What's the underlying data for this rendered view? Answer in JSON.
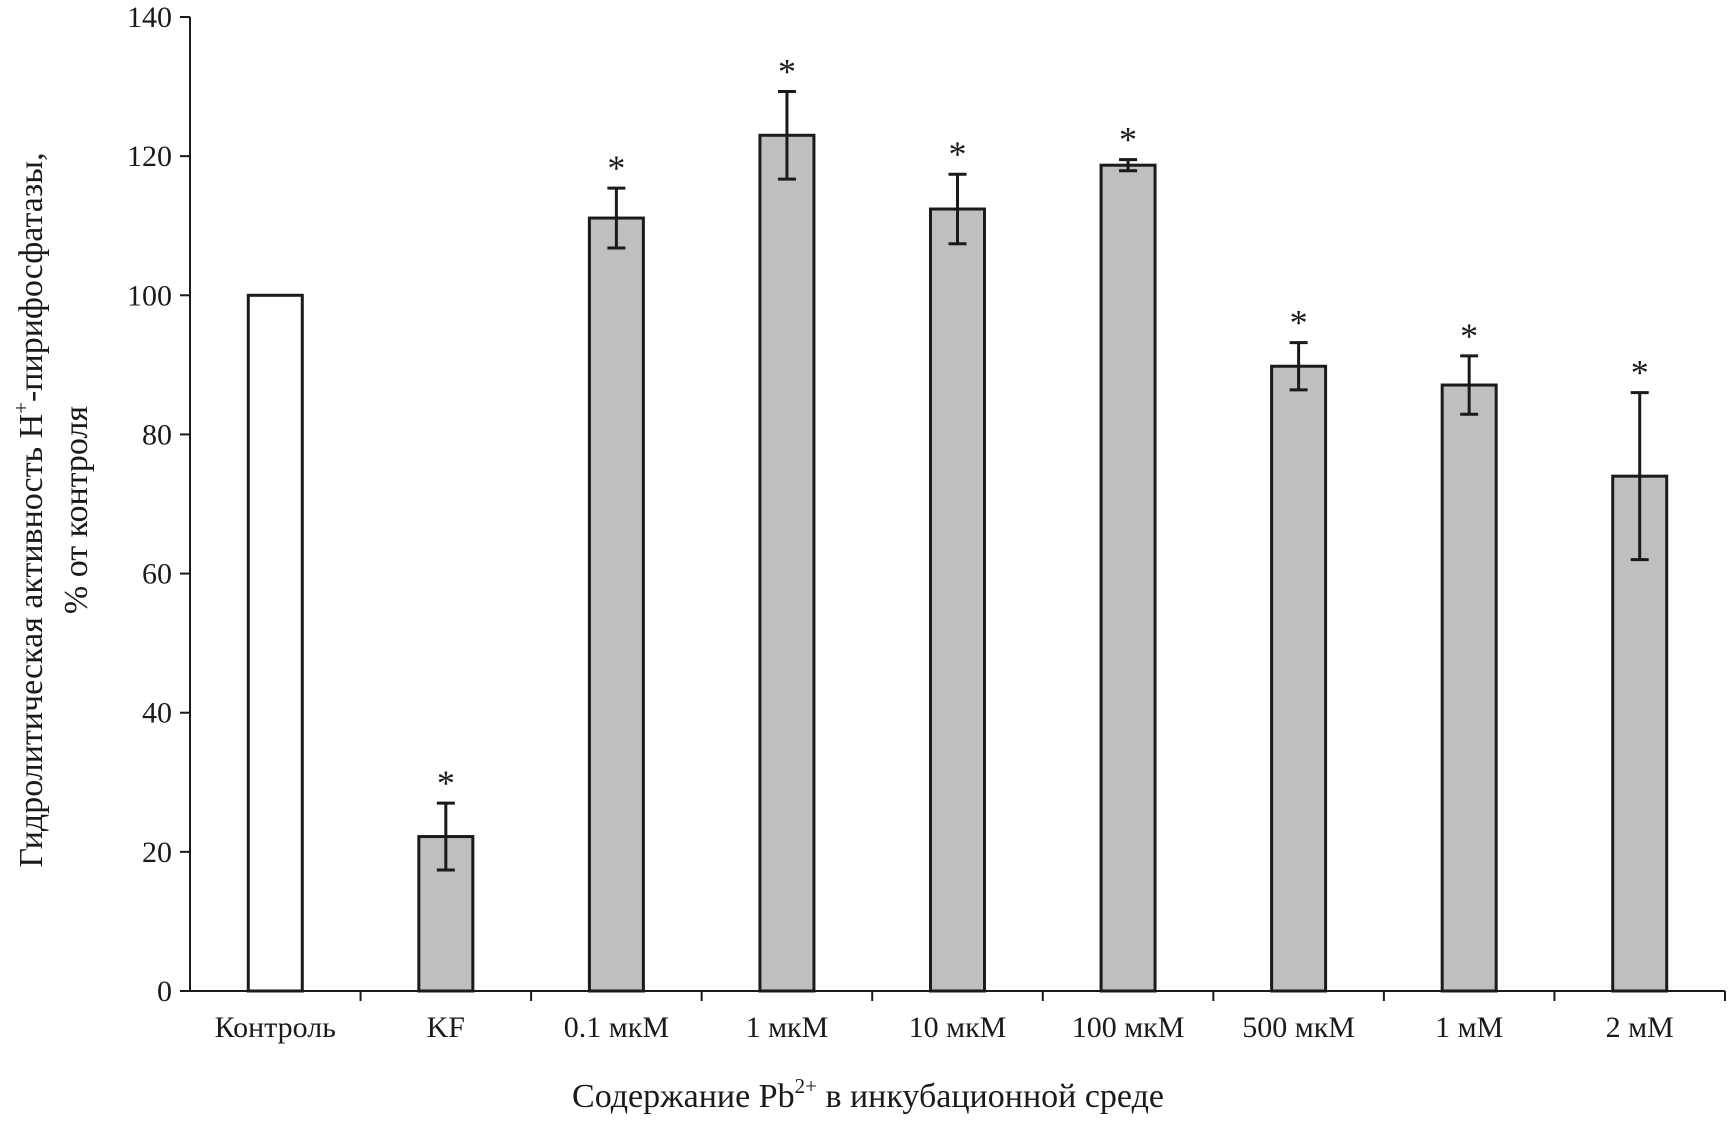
{
  "chart_data": {
    "type": "bar",
    "title": "",
    "xlabel": {
      "prefix": "Содержание Pb",
      "superscript": "2+",
      "suffix": " в инкубационной среде"
    },
    "ylabel": {
      "line1_prefix": "Гидролитическая активность H",
      "line1_superscript": "+",
      "line1_suffix": "-пирифосфатазы,",
      "line2": "% от контроля"
    },
    "ylim": [
      0,
      140
    ],
    "yticks": [
      0,
      20,
      40,
      60,
      80,
      100,
      120,
      140
    ],
    "grid": false,
    "categories": [
      "Контроль",
      "KF",
      "0.1 мкМ",
      "1 мкМ",
      "10 мкМ",
      "100 мкМ",
      "500 мкМ",
      "1 мМ",
      "2 мМ"
    ],
    "values": [
      100,
      22.2,
      111.1,
      123,
      112.4,
      118.7,
      89.8,
      87.1,
      74
    ],
    "errors": [
      0,
      4.8,
      4.3,
      6.3,
      5,
      0.8,
      3.4,
      4.2,
      12
    ],
    "significance": [
      "",
      "*",
      "*",
      "*",
      "*",
      "*",
      "*",
      "*",
      "*"
    ],
    "bar_colors": [
      "#ffffff",
      "#bfbfbf",
      "#bfbfbf",
      "#bfbfbf",
      "#bfbfbf",
      "#bfbfbf",
      "#bfbfbf",
      "#bfbfbf",
      "#bfbfbf"
    ]
  }
}
